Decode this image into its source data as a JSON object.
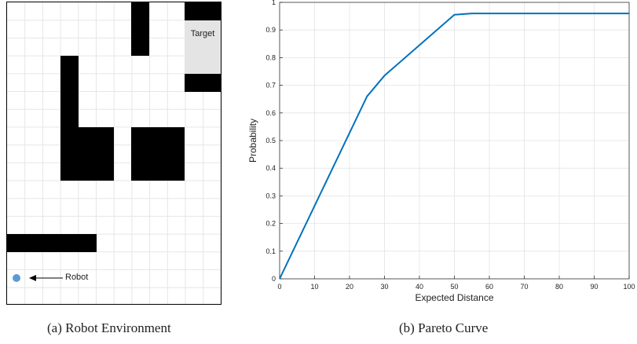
{
  "environment": {
    "target_label": "Target",
    "robot_label": "Robot",
    "caption": "(a) Robot Environment",
    "colors": {
      "obstacle": "#000000",
      "target": "#e4e4e4",
      "robot": "#5b9bd5"
    },
    "icons": {
      "robot": "robot-dot-icon",
      "arrow": "left-arrow-icon"
    }
  },
  "chart_caption": "(b) Pareto Curve",
  "chart_data": {
    "type": "line",
    "title": "",
    "xlabel": "Expected Distance",
    "ylabel": "Probability",
    "xlim": [
      0,
      100
    ],
    "ylim": [
      0,
      1
    ],
    "grid": true,
    "x_ticks": [
      "0",
      "10",
      "20",
      "30",
      "40",
      "50",
      "60",
      "70",
      "80",
      "90",
      "100"
    ],
    "y_ticks": [
      "0",
      "0.1",
      "0.2",
      "0.3",
      "0.4",
      "0.5",
      "0.6",
      "0.7",
      "0.8",
      "0.9",
      "1"
    ],
    "series": [
      {
        "color": "#0072bd",
        "x": [
          0,
          25,
          30,
          50,
          55,
          100
        ],
        "y": [
          0,
          0.66,
          0.735,
          0.955,
          0.96,
          0.96
        ]
      }
    ]
  }
}
